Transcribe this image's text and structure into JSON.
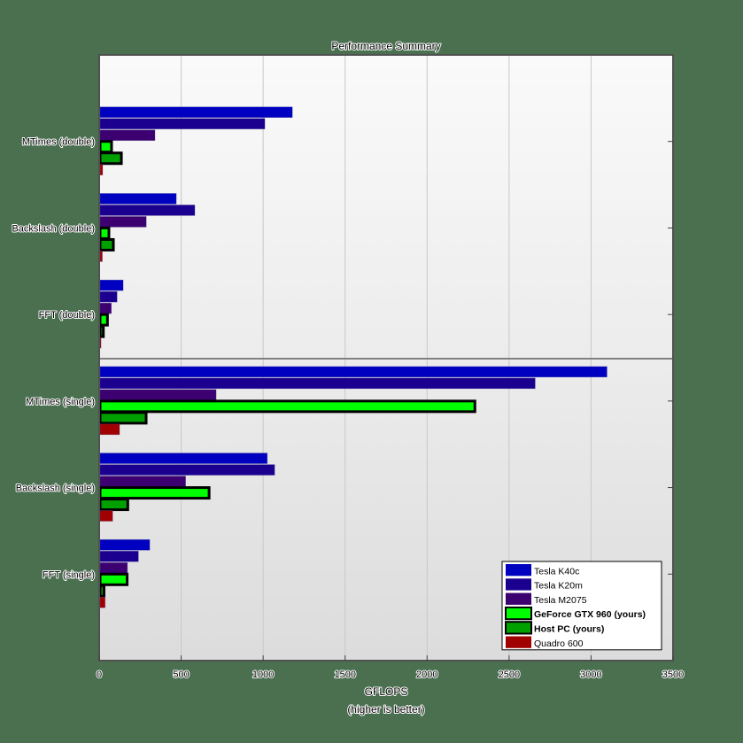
{
  "chart_data": {
    "type": "bar",
    "orientation": "horizontal",
    "title": "Performance Summary",
    "xlabel": "GFLOPS",
    "xlabel_sub": "(higher is better)",
    "ylabel": "",
    "xlim": [
      0,
      3500
    ],
    "xticks": [
      0,
      500,
      1000,
      1500,
      2000,
      2500,
      3000,
      3500
    ],
    "grid": "vertical",
    "legend_position": "lower right",
    "categories": [
      "MTimes (double)",
      "Backslash (double)",
      "FFT (double)",
      "MTimes (single)",
      "Backslash (single)",
      "FFT (single)"
    ],
    "series": [
      {
        "name": "Tesla K40c",
        "color": "#0000c0",
        "bold": false,
        "values": [
          1173,
          465,
          141,
          3092,
          1020,
          303
        ]
      },
      {
        "name": "Tesla K20m",
        "color": "#1b0090",
        "bold": false,
        "values": [
          1005,
          578,
          104,
          2654,
          1065,
          234
        ]
      },
      {
        "name": "Tesla M2075",
        "color": "#3c0070",
        "bold": false,
        "values": [
          335,
          282,
          69,
          708,
          522,
          167
        ]
      },
      {
        "name": "GeForce GTX 960 (yours)",
        "color": "#00ff00",
        "bold": true,
        "values": [
          70,
          54,
          45,
          2286,
          665,
          165
        ]
      },
      {
        "name": "Host PC (yours)",
        "color": "#00a000",
        "bold": true,
        "values": [
          130,
          81,
          20,
          281,
          169,
          24
        ]
      },
      {
        "name": "Quadro 600",
        "color": "#a00000",
        "bold": false,
        "values": [
          16,
          14,
          6,
          119,
          77,
          31
        ]
      }
    ],
    "section_divider_after_category": 2
  },
  "colors": {
    "page_background": "#4a7050",
    "plot_top_gradient": [
      "#fafafa",
      "#ececec"
    ],
    "plot_bottom_gradient": [
      "#ececec",
      "#dcdcdc"
    ],
    "axis": "#404040",
    "gridline": "#c8c8c8",
    "divider": "#808080"
  }
}
